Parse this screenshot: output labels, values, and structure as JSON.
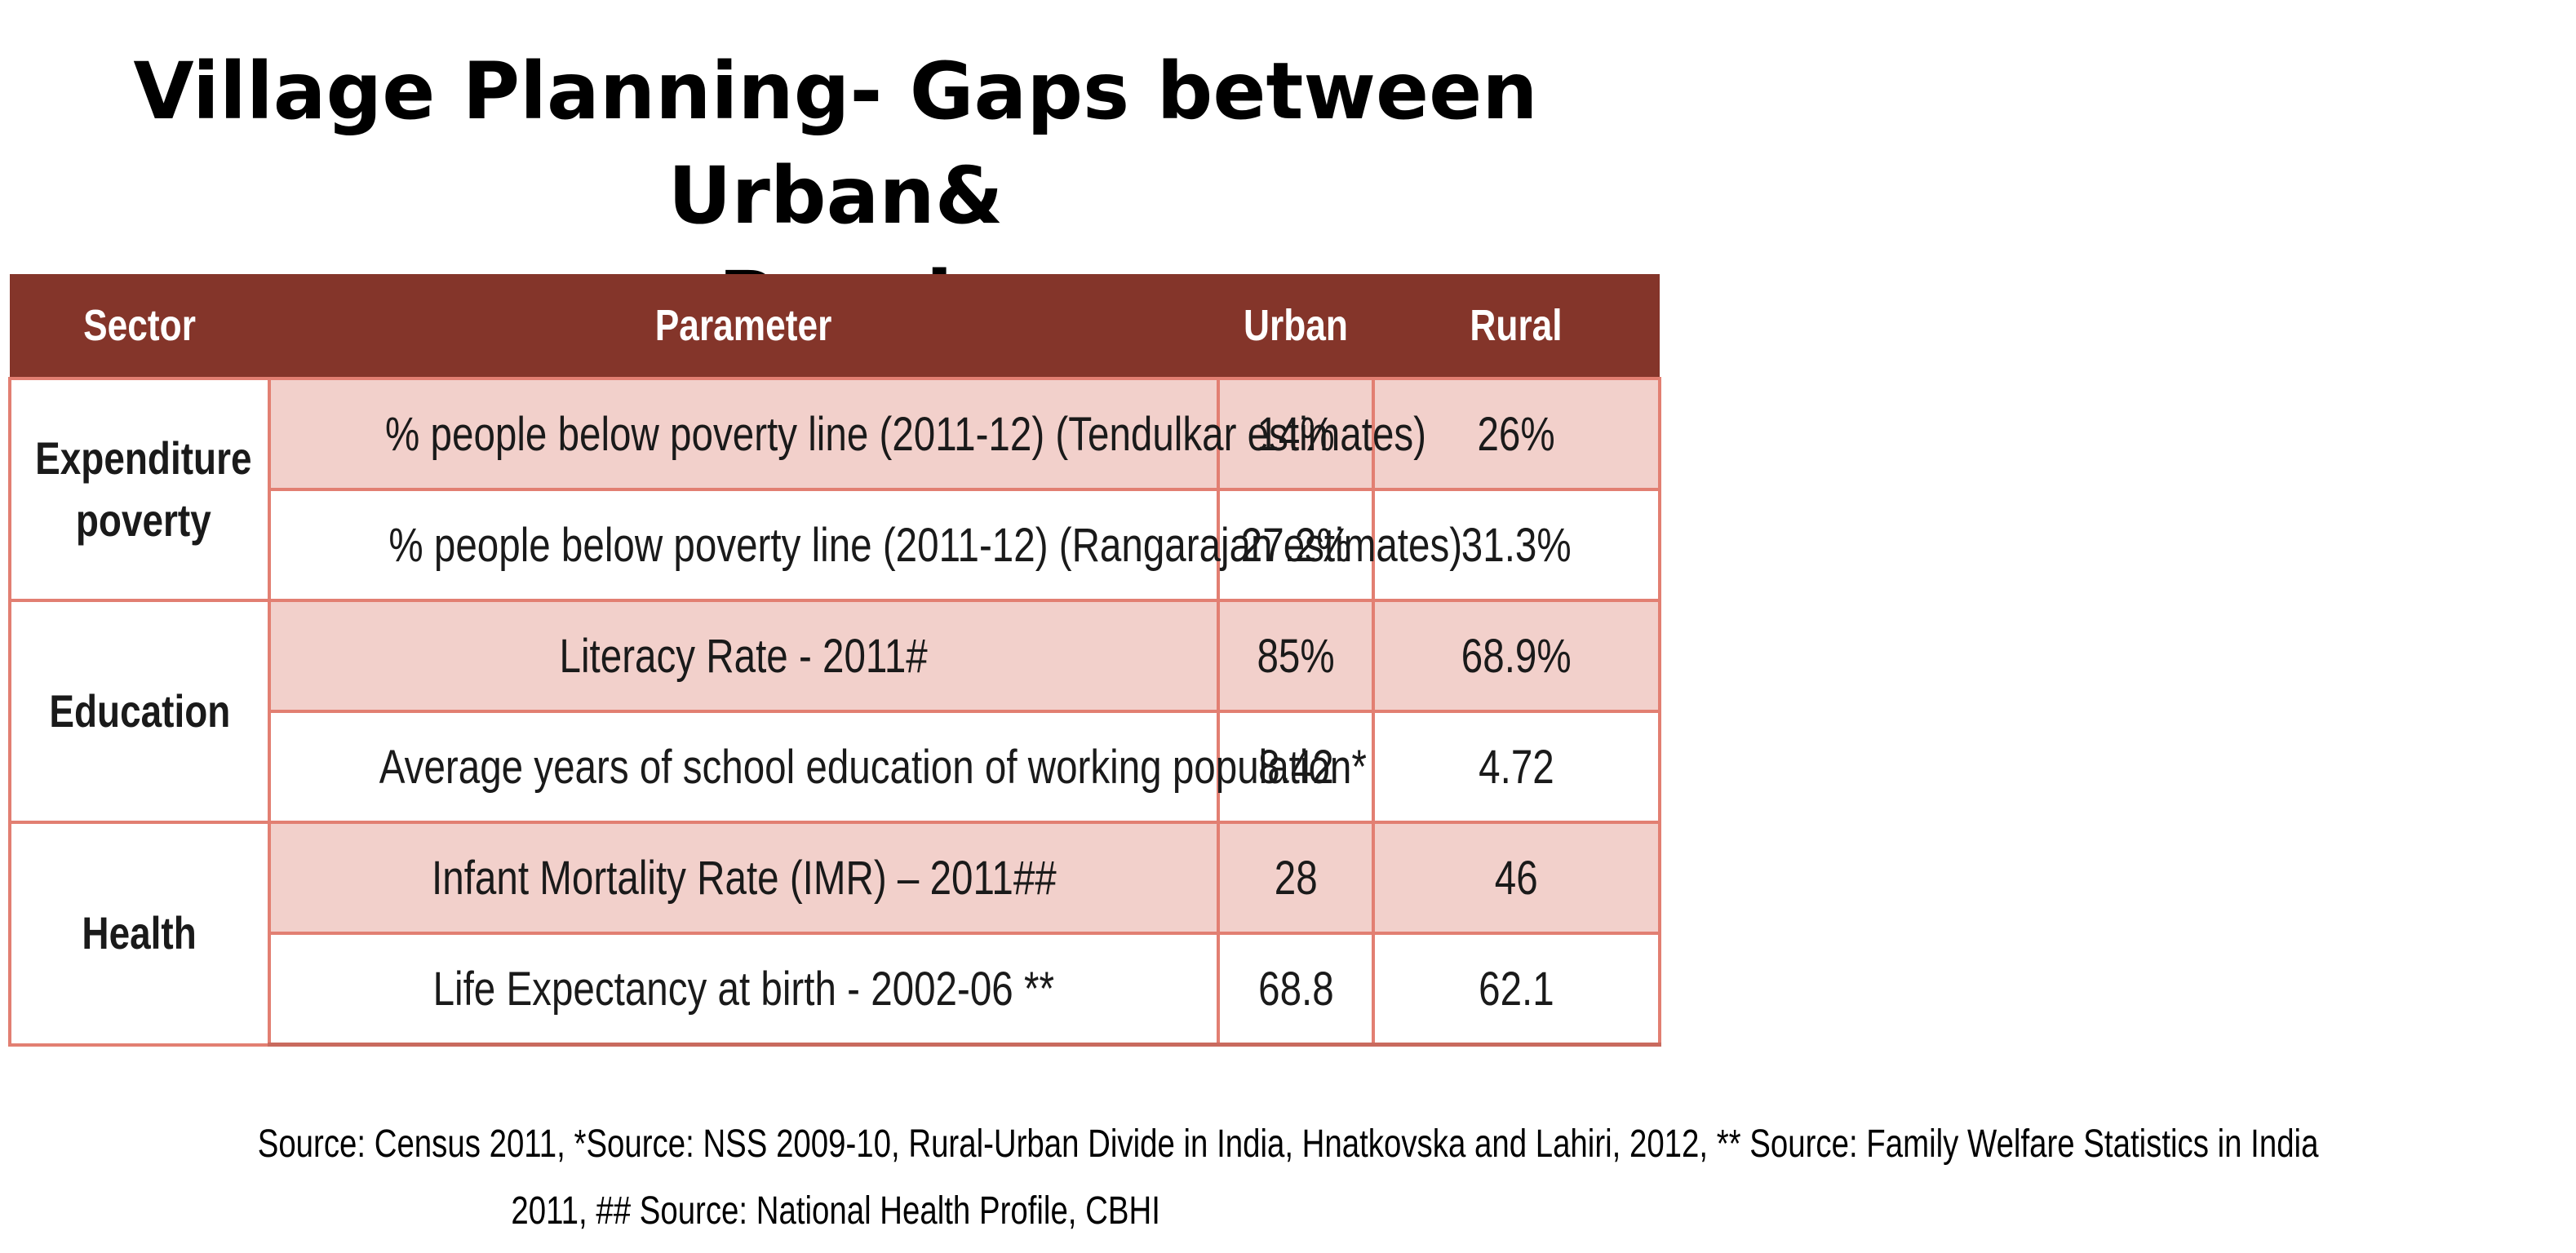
{
  "title": {
    "line1": "Village Planning- Gaps between Urban&",
    "line2": "Rural"
  },
  "table": {
    "headers": {
      "sector": "Sector",
      "parameter": "Parameter",
      "urban": "Urban",
      "rural": "Rural"
    },
    "sectors": {
      "expenditure_poverty": "Expenditure poverty",
      "education": "Education",
      "health": "Health"
    },
    "rows": [
      {
        "parameter": "% people below poverty line (2011-12) (Tendulkar estimates)",
        "urban": "14%",
        "rural": "26%"
      },
      {
        "parameter": "% people below poverty line (2011-12) (Rangarajan estimates)",
        "urban": "27.2%",
        "rural": "31.3%"
      },
      {
        "parameter": "Literacy Rate - 2011#",
        "urban": "85%",
        "rural": "68.9%"
      },
      {
        "parameter": "Average years of school education of working population*",
        "urban": "8.42",
        "rural": "4.72"
      },
      {
        "parameter": "Infant Mortality Rate (IMR) – 2011##",
        "urban": "28",
        "rural": "46"
      },
      {
        "parameter": "Life Expectancy at birth - 2002-06 **",
        "urban": "68.8",
        "rural": "62.1"
      }
    ],
    "colors": {
      "header_bg": "#84352a",
      "shaded_row_bg": "#f2d0cb",
      "border": "#e27f72"
    }
  },
  "source": {
    "line1": "Source: Census 2011, *Source: NSS 2009-10, Rural-Urban Divide in India, Hnatkovska and Lahiri, 2012, ** Source: Family Welfare Statistics in India",
    "line2": "2011, ## Source: National Health Profile, CBHI"
  }
}
